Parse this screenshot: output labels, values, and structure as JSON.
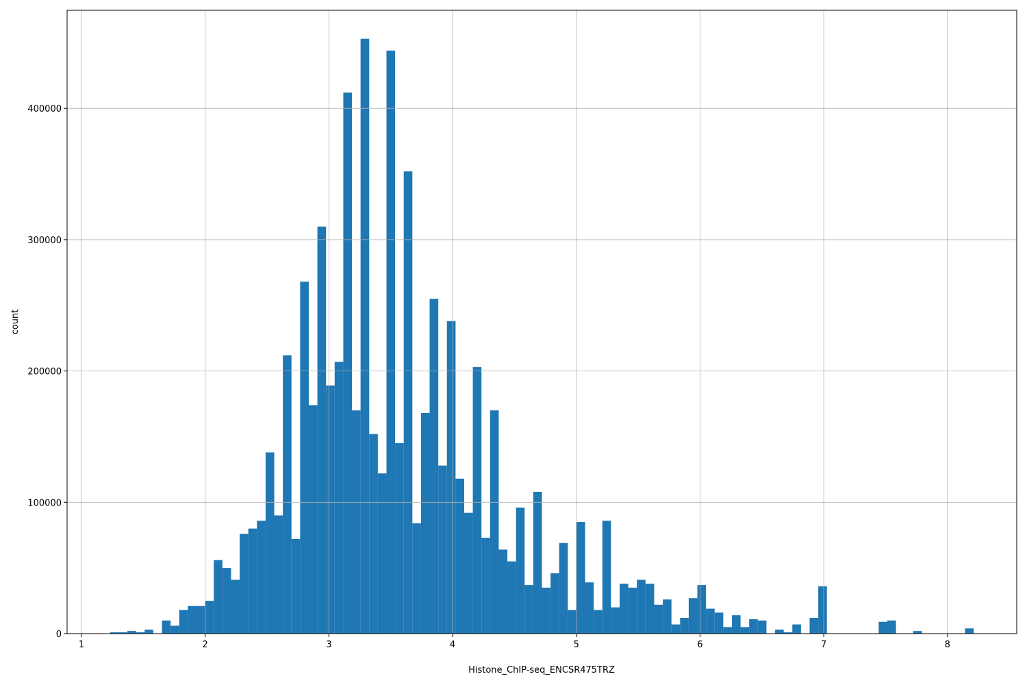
{
  "chart_data": {
    "type": "histogram",
    "xlabel": "Histone_ChIP-seq_ENCSR475TRZ",
    "ylabel": "count",
    "color": "#1f77b4",
    "grid": true,
    "bins": [
      1.232,
      1.3018,
      1.3716,
      1.4414,
      1.5112,
      1.581,
      1.6508,
      1.7206,
      1.7904,
      1.8602,
      1.93,
      1.9998,
      2.0696,
      2.1394,
      2.2092,
      2.279,
      2.3488,
      2.4186,
      2.4884,
      2.5582,
      2.628,
      2.6978,
      2.7676,
      2.8374,
      2.9072,
      2.977,
      3.0468,
      3.1166,
      3.1864,
      3.2562,
      3.326,
      3.3958,
      3.4656,
      3.5354,
      3.6052,
      3.675,
      3.7448,
      3.8146,
      3.8844,
      3.9542,
      4.024,
      4.0938,
      4.1636,
      4.2334,
      4.3032,
      4.373,
      4.4428,
      4.5126,
      4.5824,
      4.6522,
      4.722,
      4.7918,
      4.8616,
      4.9314,
      5.0012,
      5.071,
      5.1408,
      5.2106,
      5.2804,
      5.3502,
      5.42,
      5.4898,
      5.5596,
      5.6294,
      5.6992,
      5.769,
      5.8388,
      5.9086,
      5.9784,
      6.0482,
      6.118,
      6.1878,
      6.2576,
      6.3274,
      6.3972,
      6.467,
      6.5368,
      6.6066,
      6.6764,
      6.7462,
      6.816,
      6.8858,
      6.9556,
      7.0254,
      7.0952,
      7.165,
      7.2348,
      7.3046,
      7.3744,
      7.4442,
      7.514,
      7.5838,
      7.6536,
      7.7234,
      7.7932,
      7.863,
      7.9328,
      8.0026,
      8.0724,
      8.1422,
      8.212
    ],
    "counts": [
      1000,
      1000,
      2000,
      1000,
      3000,
      0,
      10000,
      6000,
      18000,
      21000,
      21000,
      25000,
      56000,
      50000,
      41000,
      76000,
      80000,
      86000,
      138000,
      90000,
      212000,
      72000,
      268000,
      174000,
      310000,
      189000,
      207000,
      412000,
      170000,
      453000,
      152000,
      122000,
      444000,
      145000,
      352000,
      84000,
      168000,
      255000,
      128000,
      238000,
      118000,
      92000,
      203000,
      73000,
      170000,
      64000,
      55000,
      96000,
      37000,
      108000,
      35000,
      46000,
      69000,
      18000,
      85000,
      39000,
      18000,
      86000,
      20000,
      38000,
      35000,
      41000,
      38000,
      22000,
      26000,
      7000,
      12000,
      27000,
      37000,
      19000,
      16000,
      5000,
      14000,
      5000,
      11000,
      10000,
      0,
      3000,
      1000,
      7000,
      0,
      12000,
      36000,
      0,
      0,
      0,
      0,
      0,
      0,
      9000,
      10000,
      0,
      0,
      2000,
      0,
      0,
      0,
      0,
      0,
      4000
    ],
    "xlim": [
      0.884,
      8.56
    ],
    "xticks": [
      1,
      2,
      3,
      4,
      5,
      6,
      7,
      8
    ],
    "ylim": [
      0,
      474700
    ],
    "yticks": [
      0,
      100000,
      200000,
      300000,
      400000
    ]
  }
}
